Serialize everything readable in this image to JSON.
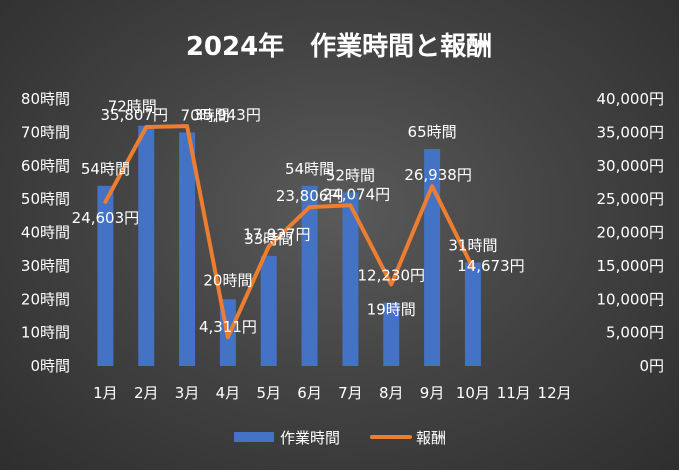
{
  "chart_data": {
    "type": "bar+line",
    "title": "2024年　作業時間と報酬",
    "categories": [
      "1月",
      "2月",
      "3月",
      "4月",
      "5月",
      "6月",
      "7月",
      "8月",
      "9月",
      "10月",
      "11月",
      "12月"
    ],
    "series": [
      {
        "name": "作業時間",
        "type": "bar",
        "axis": "left",
        "color": "#4472c4",
        "values": [
          54,
          72,
          70,
          20,
          33,
          54,
          52,
          19,
          65,
          31,
          null,
          null
        ],
        "labels": [
          "54時間",
          "72時間",
          "70時間",
          "20時間",
          "33時間",
          "54時間",
          "52時間",
          "19時間",
          "65時間",
          "31時間",
          null,
          null
        ]
      },
      {
        "name": "報酬",
        "type": "line",
        "axis": "right",
        "color": "#ed7d31",
        "values": [
          24603,
          35807,
          35943,
          4311,
          17927,
          23806,
          24074,
          12230,
          26938,
          14673,
          null,
          null
        ],
        "labels": [
          "24,603円",
          "35,807円",
          "35,943円",
          "4,311円",
          "17,927円",
          "23,806円",
          "24,074円",
          "12,230円",
          "26,938円",
          "14,673円",
          null,
          null
        ]
      }
    ],
    "y_left": {
      "range": [
        0,
        80
      ],
      "ticks": [
        0,
        10,
        20,
        30,
        40,
        50,
        60,
        70,
        80
      ],
      "tick_labels": [
        "0時間",
        "10時間",
        "20時間",
        "30時間",
        "40時間",
        "50時間",
        "60時間",
        "70時間",
        "80時間"
      ]
    },
    "y_right": {
      "range": [
        0,
        40000
      ],
      "ticks": [
        0,
        5000,
        10000,
        15000,
        20000,
        25000,
        30000,
        35000,
        40000
      ],
      "tick_labels": [
        "0円",
        "5,000円",
        "10,000円",
        "15,000円",
        "20,000円",
        "25,000円",
        "30,000円",
        "35,000円",
        "40,000円"
      ]
    },
    "grid": false,
    "legend": "bottom"
  }
}
